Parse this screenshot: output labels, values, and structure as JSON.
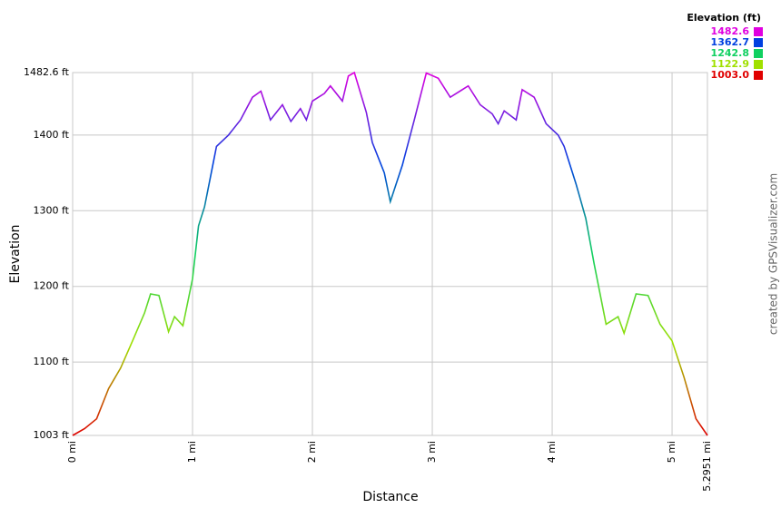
{
  "chart_data": {
    "type": "line",
    "x_label": "Distance",
    "y_label": "Elevation",
    "credit": "created by GPSVisualizer.com",
    "x": [
      0,
      0.1,
      0.2,
      0.3,
      0.4,
      0.5,
      0.6,
      0.65,
      0.72,
      0.8,
      0.85,
      0.92,
      1.0,
      1.05,
      1.1,
      1.15,
      1.2,
      1.3,
      1.4,
      1.5,
      1.57,
      1.65,
      1.75,
      1.82,
      1.9,
      1.95,
      2.0,
      2.1,
      2.15,
      2.25,
      2.3,
      2.35,
      2.45,
      2.5,
      2.6,
      2.65,
      2.75,
      2.85,
      2.95,
      3.05,
      3.15,
      3.3,
      3.4,
      3.5,
      3.55,
      3.6,
      3.7,
      3.75,
      3.85,
      3.95,
      4.05,
      4.1,
      4.2,
      4.28,
      4.35,
      4.45,
      4.55,
      4.6,
      4.7,
      4.8,
      4.9,
      5.0,
      5.1,
      5.2,
      5.2951
    ],
    "series": [
      {
        "name": "Elevation (ft)",
        "values": [
          1003,
          1012,
          1025,
          1065,
          1092,
          1128,
          1165,
          1190,
          1188,
          1140,
          1160,
          1148,
          1210,
          1280,
          1305,
          1345,
          1385,
          1400,
          1420,
          1450,
          1458,
          1420,
          1440,
          1418,
          1435,
          1420,
          1445,
          1455,
          1465,
          1445,
          1478,
          1482.6,
          1430,
          1390,
          1350,
          1312,
          1360,
          1420,
          1482,
          1475,
          1450,
          1465,
          1440,
          1428,
          1415,
          1432,
          1420,
          1460,
          1450,
          1415,
          1400,
          1385,
          1335,
          1290,
          1230,
          1150,
          1160,
          1138,
          1190,
          1188,
          1150,
          1128,
          1080,
          1025,
          1003
        ]
      }
    ],
    "xlim": [
      0,
      5.2951
    ],
    "xticks": [
      {
        "value": 0,
        "label": "0 mi"
      },
      {
        "value": 1,
        "label": "1 mi"
      },
      {
        "value": 2,
        "label": "2 mi"
      },
      {
        "value": 3,
        "label": "3 mi"
      },
      {
        "value": 4,
        "label": "4 mi"
      },
      {
        "value": 5,
        "label": "5 mi"
      },
      {
        "value": 5.2951,
        "label": "5.2951 mi"
      }
    ],
    "ylim": [
      1003,
      1482.6
    ],
    "yticks": [
      {
        "value": 1003,
        "label": "1003 ft"
      },
      {
        "value": 1100,
        "label": "1100 ft"
      },
      {
        "value": 1200,
        "label": "1200 ft"
      },
      {
        "value": 1300,
        "label": "1300 ft"
      },
      {
        "value": 1400,
        "label": "1400 ft"
      },
      {
        "value": 1482.6,
        "label": "1482.6 ft"
      }
    ],
    "grid": true,
    "legend": {
      "title": "Elevation (ft)",
      "stops": [
        1482.6,
        1362.7,
        1242.8,
        1122.9,
        {
          "value": 1003,
          "label": "1003.0"
        }
      ],
      "colors": [
        "#e000e0",
        "#0040e0",
        "#10d060",
        "#a0e000",
        "#e00000"
      ]
    }
  }
}
